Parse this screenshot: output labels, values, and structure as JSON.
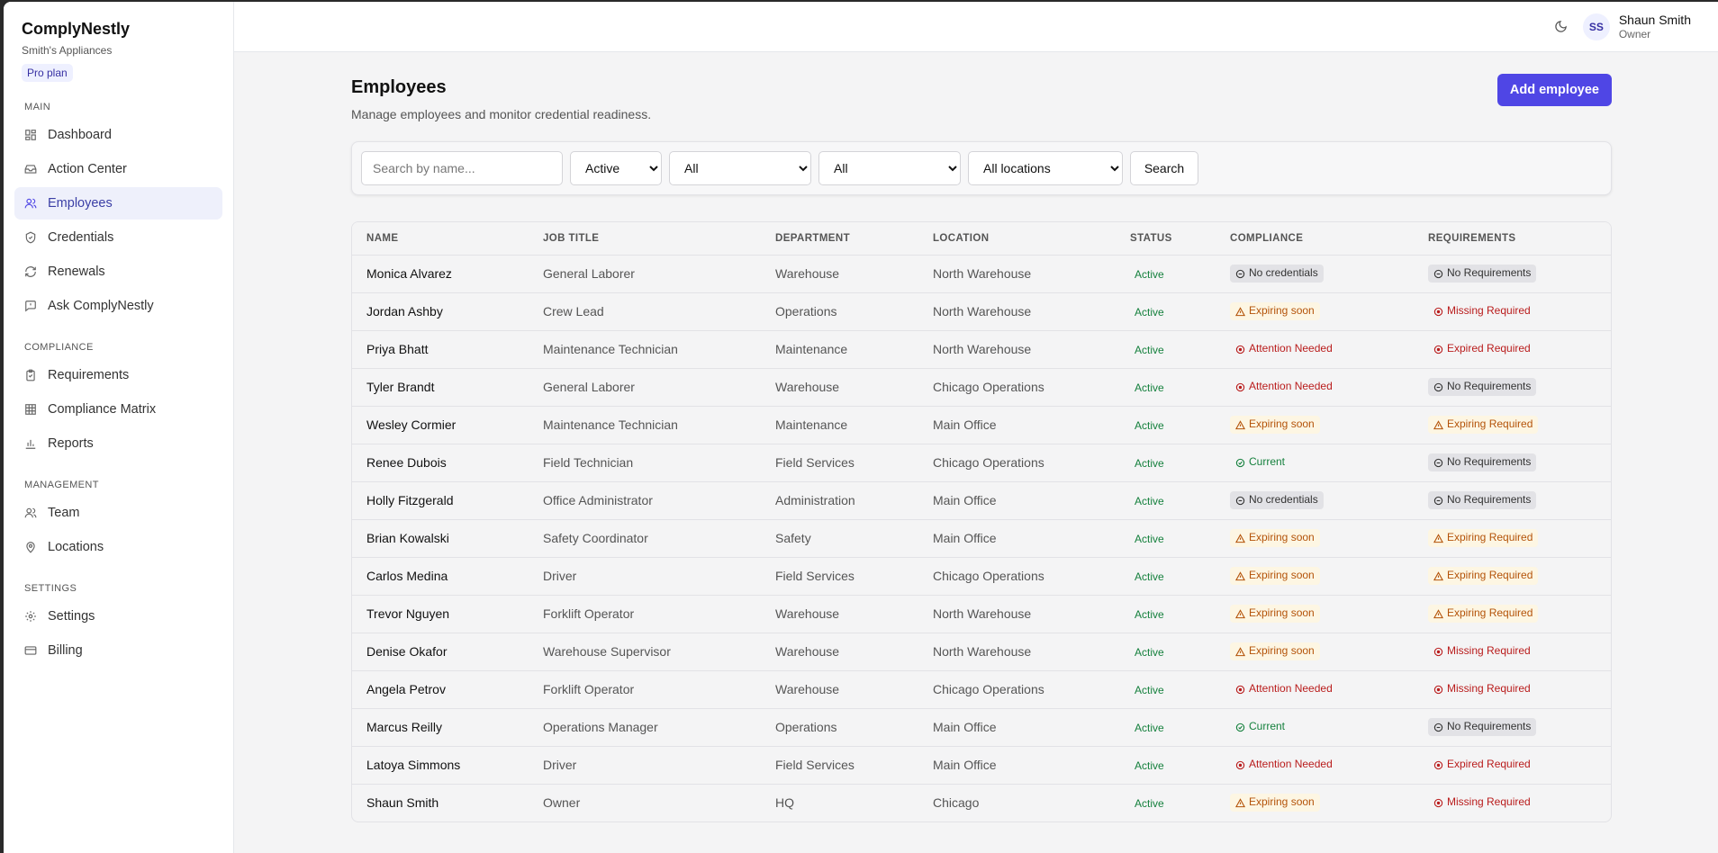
{
  "brand": {
    "name": "ComplyNestly",
    "org": "Smith's Appliances",
    "plan": "Pro plan"
  },
  "nav": [
    {
      "title": "MAIN",
      "items": [
        {
          "label": "Dashboard",
          "icon": "dashboard-icon",
          "active": false
        },
        {
          "label": "Action Center",
          "icon": "inbox-icon",
          "active": false
        },
        {
          "label": "Employees",
          "icon": "users-icon",
          "active": true
        },
        {
          "label": "Credentials",
          "icon": "shield-icon",
          "active": false
        },
        {
          "label": "Renewals",
          "icon": "refresh-icon",
          "active": false
        },
        {
          "label": "Ask ComplyNestly",
          "icon": "chat-icon",
          "active": false
        }
      ]
    },
    {
      "title": "COMPLIANCE",
      "items": [
        {
          "label": "Requirements",
          "icon": "clipboard-icon",
          "active": false
        },
        {
          "label": "Compliance Matrix",
          "icon": "grid-icon",
          "active": false
        },
        {
          "label": "Reports",
          "icon": "bar-chart-icon",
          "active": false
        }
      ]
    },
    {
      "title": "MANAGEMENT",
      "items": [
        {
          "label": "Team",
          "icon": "team-icon",
          "active": false
        },
        {
          "label": "Locations",
          "icon": "map-pin-icon",
          "active": false
        }
      ]
    },
    {
      "title": "SETTINGS",
      "items": [
        {
          "label": "Settings",
          "icon": "gear-icon",
          "active": false
        },
        {
          "label": "Billing",
          "icon": "credit-card-icon",
          "active": false
        }
      ]
    }
  ],
  "user": {
    "initials": "SS",
    "name": "Shaun Smith",
    "role": "Owner"
  },
  "page": {
    "title": "Employees",
    "subtitle": "Manage employees and monitor credential readiness.",
    "add_button": "Add employee"
  },
  "filters": {
    "search_placeholder": "Search by name...",
    "status": "Active",
    "filter_a": "All",
    "filter_b": "All",
    "location": "All locations",
    "search_button": "Search"
  },
  "table": {
    "headers": [
      "NAME",
      "JOB TITLE",
      "DEPARTMENT",
      "LOCATION",
      "STATUS",
      "COMPLIANCE",
      "REQUIREMENTS"
    ],
    "rows": [
      {
        "name": "Monica Alvarez",
        "job": "General Laborer",
        "dept": "Warehouse",
        "loc": "North Warehouse",
        "status": "Active",
        "compliance": "No credentials",
        "c_kind": "grey",
        "req": "No Requirements",
        "r_kind": "grey"
      },
      {
        "name": "Jordan Ashby",
        "job": "Crew Lead",
        "dept": "Operations",
        "loc": "North Warehouse",
        "status": "Active",
        "compliance": "Expiring soon",
        "c_kind": "amber",
        "req": "Missing Required",
        "r_kind": "red"
      },
      {
        "name": "Priya Bhatt",
        "job": "Maintenance Technician",
        "dept": "Maintenance",
        "loc": "North Warehouse",
        "status": "Active",
        "compliance": "Attention Needed",
        "c_kind": "red",
        "req": "Expired Required",
        "r_kind": "red"
      },
      {
        "name": "Tyler Brandt",
        "job": "General Laborer",
        "dept": "Warehouse",
        "loc": "Chicago Operations",
        "status": "Active",
        "compliance": "Attention Needed",
        "c_kind": "red",
        "req": "No Requirements",
        "r_kind": "grey"
      },
      {
        "name": "Wesley Cormier",
        "job": "Maintenance Technician",
        "dept": "Maintenance",
        "loc": "Main Office",
        "status": "Active",
        "compliance": "Expiring soon",
        "c_kind": "amber",
        "req": "Expiring Required",
        "r_kind": "amber"
      },
      {
        "name": "Renee Dubois",
        "job": "Field Technician",
        "dept": "Field Services",
        "loc": "Chicago Operations",
        "status": "Active",
        "compliance": "Current",
        "c_kind": "green",
        "req": "No Requirements",
        "r_kind": "grey"
      },
      {
        "name": "Holly Fitzgerald",
        "job": "Office Administrator",
        "dept": "Administration",
        "loc": "Main Office",
        "status": "Active",
        "compliance": "No credentials",
        "c_kind": "grey",
        "req": "No Requirements",
        "r_kind": "grey"
      },
      {
        "name": "Brian Kowalski",
        "job": "Safety Coordinator",
        "dept": "Safety",
        "loc": "Main Office",
        "status": "Active",
        "compliance": "Expiring soon",
        "c_kind": "amber",
        "req": "Expiring Required",
        "r_kind": "amber"
      },
      {
        "name": "Carlos Medina",
        "job": "Driver",
        "dept": "Field Services",
        "loc": "Chicago Operations",
        "status": "Active",
        "compliance": "Expiring soon",
        "c_kind": "amber",
        "req": "Expiring Required",
        "r_kind": "amber"
      },
      {
        "name": "Trevor Nguyen",
        "job": "Forklift Operator",
        "dept": "Warehouse",
        "loc": "North Warehouse",
        "status": "Active",
        "compliance": "Expiring soon",
        "c_kind": "amber",
        "req": "Expiring Required",
        "r_kind": "amber"
      },
      {
        "name": "Denise Okafor",
        "job": "Warehouse Supervisor",
        "dept": "Warehouse",
        "loc": "North Warehouse",
        "status": "Active",
        "compliance": "Expiring soon",
        "c_kind": "amber",
        "req": "Missing Required",
        "r_kind": "red"
      },
      {
        "name": "Angela Petrov",
        "job": "Forklift Operator",
        "dept": "Warehouse",
        "loc": "Chicago Operations",
        "status": "Active",
        "compliance": "Attention Needed",
        "c_kind": "red",
        "req": "Missing Required",
        "r_kind": "red"
      },
      {
        "name": "Marcus Reilly",
        "job": "Operations Manager",
        "dept": "Operations",
        "loc": "Main Office",
        "status": "Active",
        "compliance": "Current",
        "c_kind": "green",
        "req": "No Requirements",
        "r_kind": "grey"
      },
      {
        "name": "Latoya Simmons",
        "job": "Driver",
        "dept": "Field Services",
        "loc": "Main Office",
        "status": "Active",
        "compliance": "Attention Needed",
        "c_kind": "red",
        "req": "Expired Required",
        "r_kind": "red"
      },
      {
        "name": "Shaun Smith",
        "job": "Owner",
        "dept": "HQ",
        "loc": "Chicago",
        "status": "Active",
        "compliance": "Expiring soon",
        "c_kind": "amber",
        "req": "Missing Required",
        "r_kind": "red"
      }
    ]
  }
}
